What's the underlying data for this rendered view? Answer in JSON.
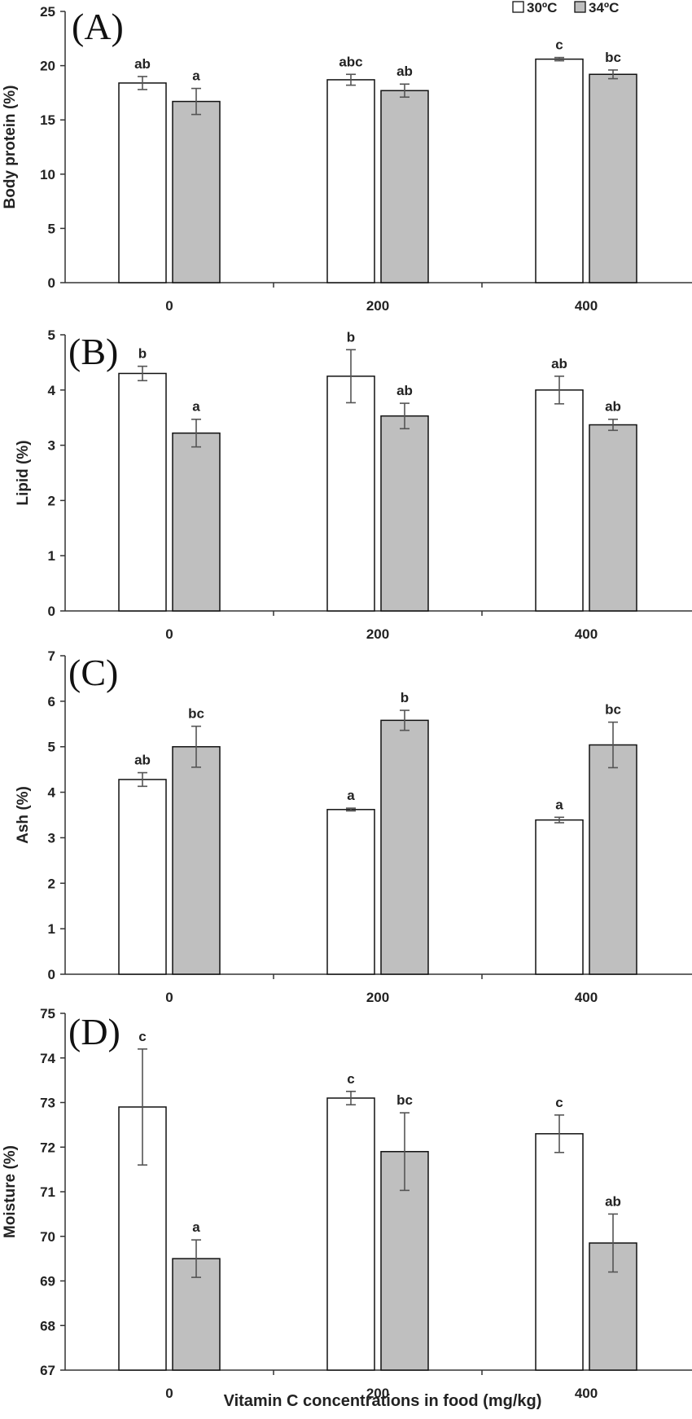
{
  "xlabel": "Vitamin C concentrations in food (mg/kg)",
  "colors": {
    "s30": "#ffffff",
    "s34": "#bfbfbf",
    "stroke": "#111111",
    "errbar": "#555555"
  },
  "chart_data": [
    {
      "type": "bar",
      "panel_label": "(A)",
      "categories": [
        "0",
        "200",
        "400"
      ],
      "series": [
        {
          "name": "30ºC",
          "values": [
            18.4,
            18.7,
            20.6
          ],
          "errors": [
            0.6,
            0.5,
            0.15
          ]
        },
        {
          "name": "34ºC",
          "values": [
            16.7,
            17.7,
            19.2
          ],
          "errors": [
            1.2,
            0.6,
            0.4
          ]
        }
      ],
      "letters": [
        [
          "ab",
          "abc",
          "c"
        ],
        [
          "a",
          "ab",
          "bc"
        ]
      ],
      "ylabel": "Body protein (%)",
      "ylim": [
        0,
        25
      ],
      "yticks": [
        0,
        5,
        10,
        15,
        20,
        25
      ],
      "legend": "top-right"
    },
    {
      "type": "bar",
      "panel_label": "(B)",
      "categories": [
        "0",
        "200",
        "400"
      ],
      "series": [
        {
          "name": "30ºC",
          "values": [
            4.3,
            4.25,
            4.0
          ],
          "errors": [
            0.13,
            0.48,
            0.25
          ]
        },
        {
          "name": "34ºC",
          "values": [
            3.22,
            3.53,
            3.37
          ],
          "errors": [
            0.25,
            0.23,
            0.1
          ]
        }
      ],
      "letters": [
        [
          "b",
          "b",
          "ab"
        ],
        [
          "a",
          "ab",
          "ab"
        ]
      ],
      "ylabel": "Lipid (%)",
      "ylim": [
        0,
        5
      ],
      "yticks": [
        0,
        1,
        2,
        3,
        4,
        5
      ]
    },
    {
      "type": "bar",
      "panel_label": "(C)",
      "categories": [
        "0",
        "200",
        "400"
      ],
      "series": [
        {
          "name": "30ºC",
          "values": [
            4.28,
            3.62,
            3.39
          ],
          "errors": [
            0.15,
            0.03,
            0.06
          ]
        },
        {
          "name": "34ºC",
          "values": [
            5.0,
            5.58,
            5.04
          ],
          "errors": [
            0.45,
            0.22,
            0.5
          ]
        }
      ],
      "letters": [
        [
          "ab",
          "a",
          "a"
        ],
        [
          "bc",
          "b",
          "bc"
        ]
      ],
      "ylabel": "Ash (%)",
      "ylim": [
        0,
        7
      ],
      "yticks": [
        0,
        1,
        2,
        3,
        4,
        5,
        6,
        7
      ]
    },
    {
      "type": "bar",
      "panel_label": "(D)",
      "categories": [
        "0",
        "200",
        "400"
      ],
      "series": [
        {
          "name": "30ºC",
          "values": [
            72.9,
            73.1,
            72.3
          ],
          "errors": [
            1.3,
            0.15,
            0.42
          ]
        },
        {
          "name": "34ºC",
          "values": [
            69.5,
            71.9,
            69.85
          ],
          "errors": [
            0.42,
            0.87,
            0.65
          ]
        }
      ],
      "letters": [
        [
          "c",
          "c",
          "c"
        ],
        [
          "a",
          "bc",
          "ab"
        ]
      ],
      "ylabel": "Moisture (%)",
      "ylim": [
        67,
        75
      ],
      "yticks": [
        67,
        68,
        69,
        70,
        71,
        72,
        73,
        74,
        75
      ]
    }
  ]
}
